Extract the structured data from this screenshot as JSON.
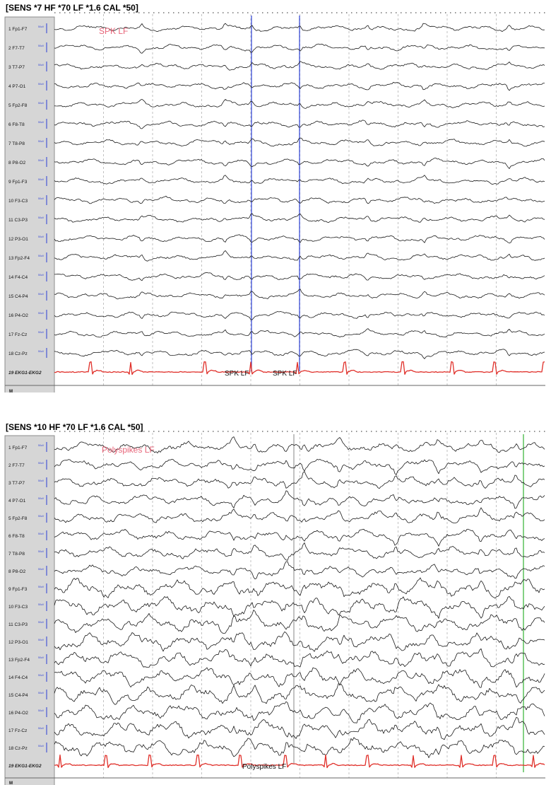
{
  "panels": [
    {
      "header": "[SENS *7  HF *70  LF *1.6  CAL *50]",
      "annotation": "SPK LF",
      "markers": [
        {
          "label": "SPK LF",
          "color": "#2b3fd6"
        },
        {
          "label": "SPK LF",
          "color": "#2b3fd6"
        }
      ],
      "channels": [
        {
          "num": "1",
          "name": "Fp1-F7"
        },
        {
          "num": "2",
          "name": "F7-T7"
        },
        {
          "num": "3",
          "name": "T7-P7"
        },
        {
          "num": "4",
          "name": "P7-O1"
        },
        {
          "num": "5",
          "name": "Fp2-F8"
        },
        {
          "num": "6",
          "name": "F8-T8"
        },
        {
          "num": "7",
          "name": "T8-P8"
        },
        {
          "num": "8",
          "name": "P8-O2"
        },
        {
          "num": "9",
          "name": "Fp1-F3"
        },
        {
          "num": "10",
          "name": "F3-C3"
        },
        {
          "num": "11",
          "name": "C3-P3"
        },
        {
          "num": "12",
          "name": "P3-O1"
        },
        {
          "num": "13",
          "name": "Fp2-F4"
        },
        {
          "num": "14",
          "name": "F4-C4"
        },
        {
          "num": "15",
          "name": "C4-P4"
        },
        {
          "num": "16",
          "name": "P4-O2"
        },
        {
          "num": "17",
          "name": "Fz-Cz"
        },
        {
          "num": "18",
          "name": "Cz-Pz"
        },
        {
          "num": "19",
          "name": "EKG1-EKG2"
        }
      ],
      "m_label": "M",
      "cal_label": "50uV"
    },
    {
      "header": "[SENS *10  HF *70  LF *1.6  CAL *50]",
      "annotation": "Polyspikes LF",
      "markers": [
        {
          "label": "Polyspikes LF",
          "color": "#999999"
        },
        {
          "label": "",
          "color": "#33b233"
        }
      ],
      "channels": [
        {
          "num": "1",
          "name": "Fp1-F7"
        },
        {
          "num": "2",
          "name": "F7-T7"
        },
        {
          "num": "3",
          "name": "T7-P7"
        },
        {
          "num": "4",
          "name": "P7-O1"
        },
        {
          "num": "5",
          "name": "Fp2-F8"
        },
        {
          "num": "6",
          "name": "F8-T8"
        },
        {
          "num": "7",
          "name": "T8-P8"
        },
        {
          "num": "8",
          "name": "P8-O2"
        },
        {
          "num": "9",
          "name": "Fp1-F3"
        },
        {
          "num": "10",
          "name": "F3-C3"
        },
        {
          "num": "11",
          "name": "C3-P3"
        },
        {
          "num": "12",
          "name": "P3-O1"
        },
        {
          "num": "13",
          "name": "Fp2-F4"
        },
        {
          "num": "14",
          "name": "F4-C4"
        },
        {
          "num": "15",
          "name": "C4-P4"
        },
        {
          "num": "16",
          "name": "P4-O2"
        },
        {
          "num": "17",
          "name": "Fz-Cz"
        },
        {
          "num": "18",
          "name": "Cz-Pz"
        },
        {
          "num": "19",
          "name": "EKG1-EKG2"
        }
      ],
      "m_label": "M",
      "cal_label": "50uV"
    }
  ],
  "colors": {
    "trace": "#1a1a1a",
    "ekg": "#e0302a",
    "annotation": "#e8667a",
    "sidebar": "#d6d6d6",
    "cal_bar": "#2b3fd6",
    "grid": "#9a9a9a"
  }
}
